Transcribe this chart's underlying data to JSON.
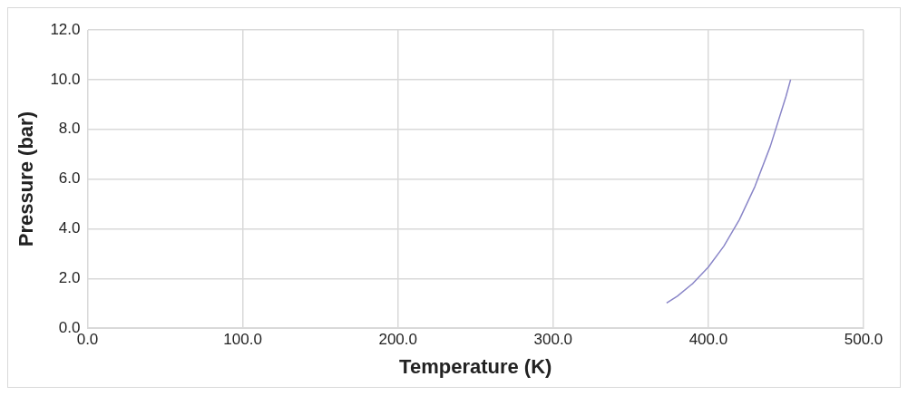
{
  "chart_data": {
    "type": "line",
    "xlabel": "Temperature (K)",
    "ylabel": "Pressure (bar)",
    "series": [
      {
        "color": "#8a86c8",
        "x": [
          373.1,
          380,
          390,
          400,
          410,
          420,
          430,
          440,
          450,
          453
        ],
        "values": [
          1.01,
          1.29,
          1.8,
          2.46,
          3.3,
          4.37,
          5.7,
          7.33,
          9.32,
          10.0
        ]
      }
    ],
    "xlim": [
      0,
      500
    ],
    "xticks": [
      {
        "value": 0,
        "label": "0.0"
      },
      {
        "value": 100,
        "label": "100.0"
      },
      {
        "value": 200,
        "label": "200.0"
      },
      {
        "value": 300,
        "label": "300.0"
      },
      {
        "value": 400,
        "label": "400.0"
      },
      {
        "value": 500,
        "label": "500.0"
      }
    ],
    "ylim": [
      0,
      12
    ],
    "yticks": [
      {
        "value": 0,
        "label": "0.0"
      },
      {
        "value": 2,
        "label": "2.0"
      },
      {
        "value": 4,
        "label": "4.0"
      },
      {
        "value": 6,
        "label": "6.0"
      },
      {
        "value": 8,
        "label": "8.0"
      },
      {
        "value": 10,
        "label": "10.0"
      },
      {
        "value": 12,
        "label": "12.0"
      }
    ],
    "grid": true,
    "legend": false,
    "marker": "none",
    "line_style": "solid"
  }
}
